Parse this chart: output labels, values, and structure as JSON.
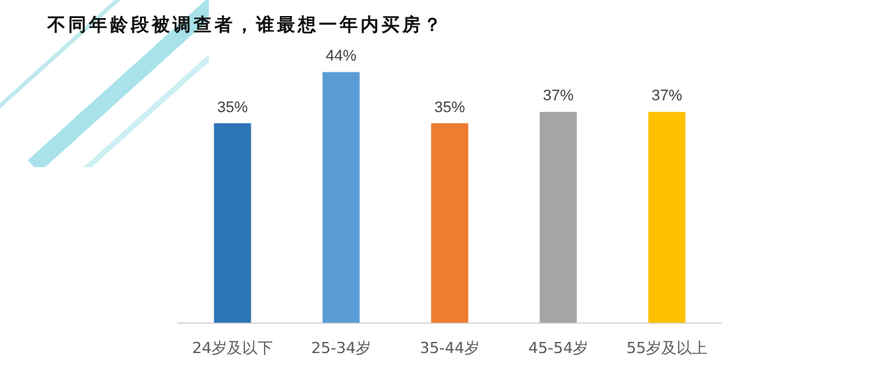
{
  "chart_data": {
    "type": "bar",
    "title": "不同年龄段被调查者，谁最想一年内买房？",
    "categories": [
      "24岁及以下",
      "25-34岁",
      "35-44岁",
      "45-54岁",
      "55岁及以上"
    ],
    "values": [
      35,
      44,
      35,
      37,
      37
    ],
    "colors": [
      "#2e75b6",
      "#5b9bd5",
      "#ed7d31",
      "#a5a5a5",
      "#ffc000"
    ],
    "value_labels": [
      "35%",
      "44%",
      "35%",
      "37%",
      "37%"
    ],
    "grid": false,
    "legend": false
  }
}
